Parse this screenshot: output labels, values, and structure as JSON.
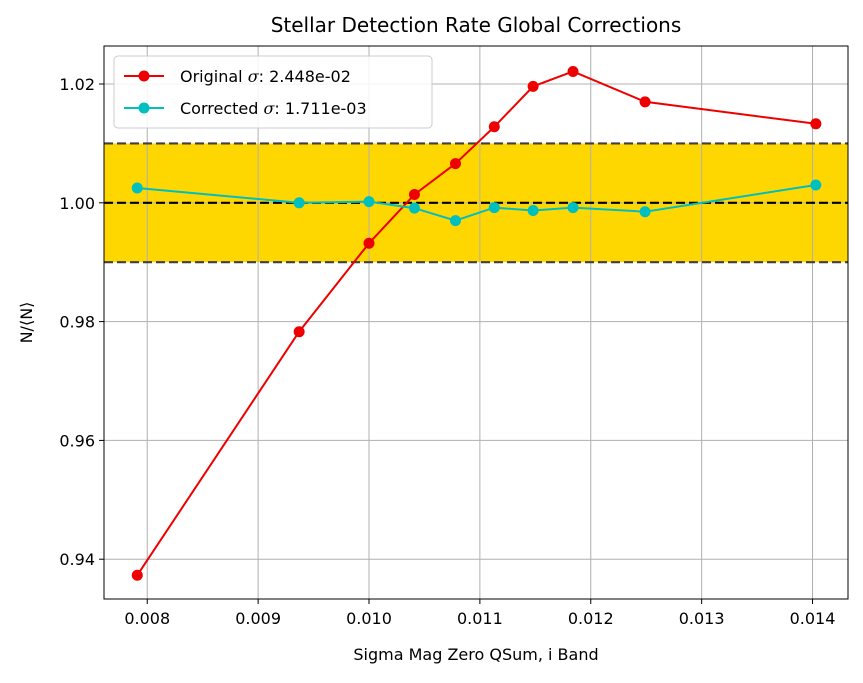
{
  "chart_data": {
    "type": "line",
    "title": "Stellar Detection Rate Global Corrections",
    "xlabel": "Sigma Mag Zero QSum, i Band",
    "ylabel": "N/⟨N⟩",
    "xlim": [
      0.00761,
      0.01432
    ],
    "ylim": [
      0.9333,
      1.0264
    ],
    "x_ticks": [
      0.008,
      0.009,
      0.01,
      0.011,
      0.012,
      0.013,
      0.014
    ],
    "x_tick_labels": [
      "0.008",
      "0.009",
      "0.010",
      "0.011",
      "0.012",
      "0.013",
      "0.014"
    ],
    "y_ticks": [
      0.94,
      0.96,
      0.98,
      1.0,
      1.02
    ],
    "y_tick_labels": [
      "0.94",
      "0.96",
      "0.98",
      "1.00",
      "1.02"
    ],
    "grid": true,
    "legend_position": "top-left",
    "band": {
      "y_low": 0.99,
      "y_high": 1.01,
      "color": "#ffd700"
    },
    "reference_lines": [
      {
        "y": 1.0,
        "color": "#000000",
        "style": "dashed"
      },
      {
        "y": 0.99,
        "color": "#404040",
        "style": "dashed"
      },
      {
        "y": 1.01,
        "color": "#404040",
        "style": "dashed"
      }
    ],
    "series": [
      {
        "name_prefix": "Original ",
        "name_symbol": "σ",
        "name_suffix": ": 2.448e-02",
        "color": "#ee0000",
        "x": [
          0.00791,
          0.00937,
          0.01,
          0.01041,
          0.01078,
          0.01113,
          0.01148,
          0.01184,
          0.01249,
          0.01403
        ],
        "y": [
          0.9373,
          0.9783,
          0.9932,
          1.0014,
          1.0066,
          1.0128,
          1.0196,
          1.0221,
          1.017,
          1.0133
        ]
      },
      {
        "name_prefix": "Corrected ",
        "name_symbol": "σ",
        "name_suffix": ": 1.711e-03",
        "color": "#00bfbf",
        "x": [
          0.00791,
          0.00937,
          0.01,
          0.01041,
          0.01078,
          0.01113,
          0.01148,
          0.01184,
          0.01249,
          0.01403
        ],
        "y": [
          1.0025,
          1.0,
          1.0002,
          0.9991,
          0.997,
          0.9992,
          0.9987,
          0.9992,
          0.9985,
          1.003
        ]
      }
    ]
  }
}
